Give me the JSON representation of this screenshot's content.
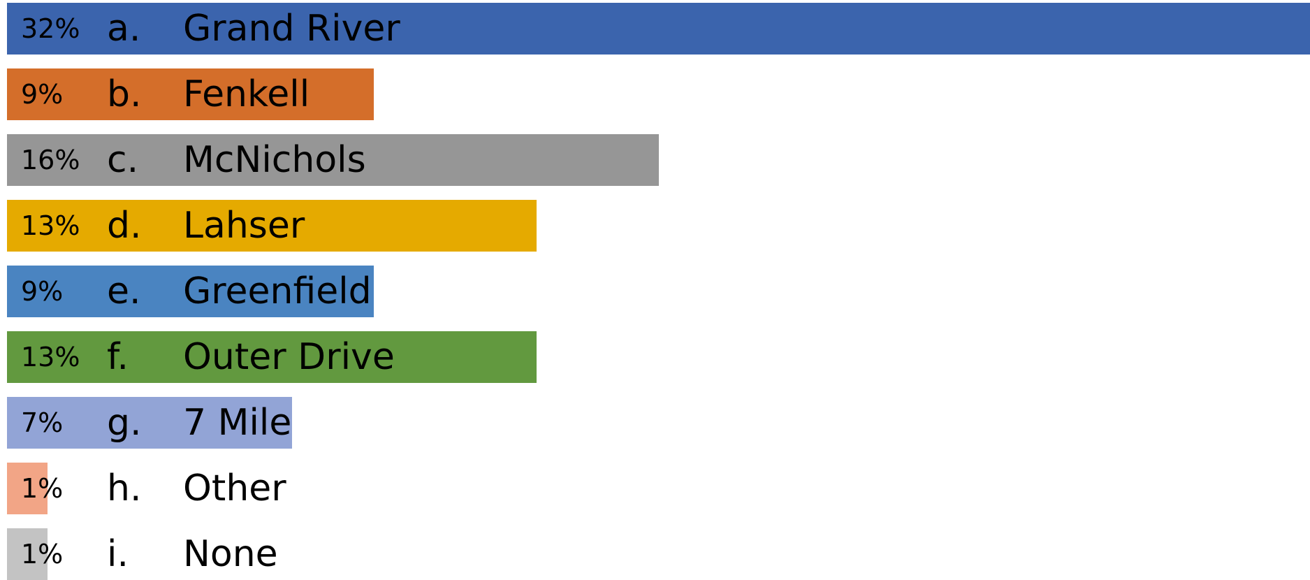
{
  "chart_data": {
    "type": "bar",
    "orientation": "horizontal",
    "grid": false,
    "xlim": [
      0,
      32
    ],
    "categories": [
      {
        "letter": "a.",
        "label": "Grand River",
        "value": 32,
        "value_label": "32%",
        "color": "#3B64AD"
      },
      {
        "letter": "b.",
        "label": "Fenkell",
        "value": 9,
        "value_label": "9%",
        "color": "#D46E2A"
      },
      {
        "letter": "c.",
        "label": "McNichols",
        "value": 16,
        "value_label": "16%",
        "color": "#969696"
      },
      {
        "letter": "d.",
        "label": "Lahser",
        "value": 13,
        "value_label": "13%",
        "color": "#E5AA00"
      },
      {
        "letter": "e.",
        "label": "Greenfield",
        "value": 9,
        "value_label": "9%",
        "color": "#4A84C1"
      },
      {
        "letter": "f.",
        "label": "Outer Drive",
        "value": 13,
        "value_label": "13%",
        "color": "#62993F"
      },
      {
        "letter": "g.",
        "label": "7 Mile",
        "value": 7,
        "value_label": "7%",
        "color": "#92A4D6"
      },
      {
        "letter": "h.",
        "label": "Other",
        "value": 1,
        "value_label": "1%",
        "color": "#F2A586"
      },
      {
        "letter": "i.",
        "label": "None",
        "value": 1,
        "value_label": "1%",
        "color": "#C3C3C3"
      }
    ]
  }
}
